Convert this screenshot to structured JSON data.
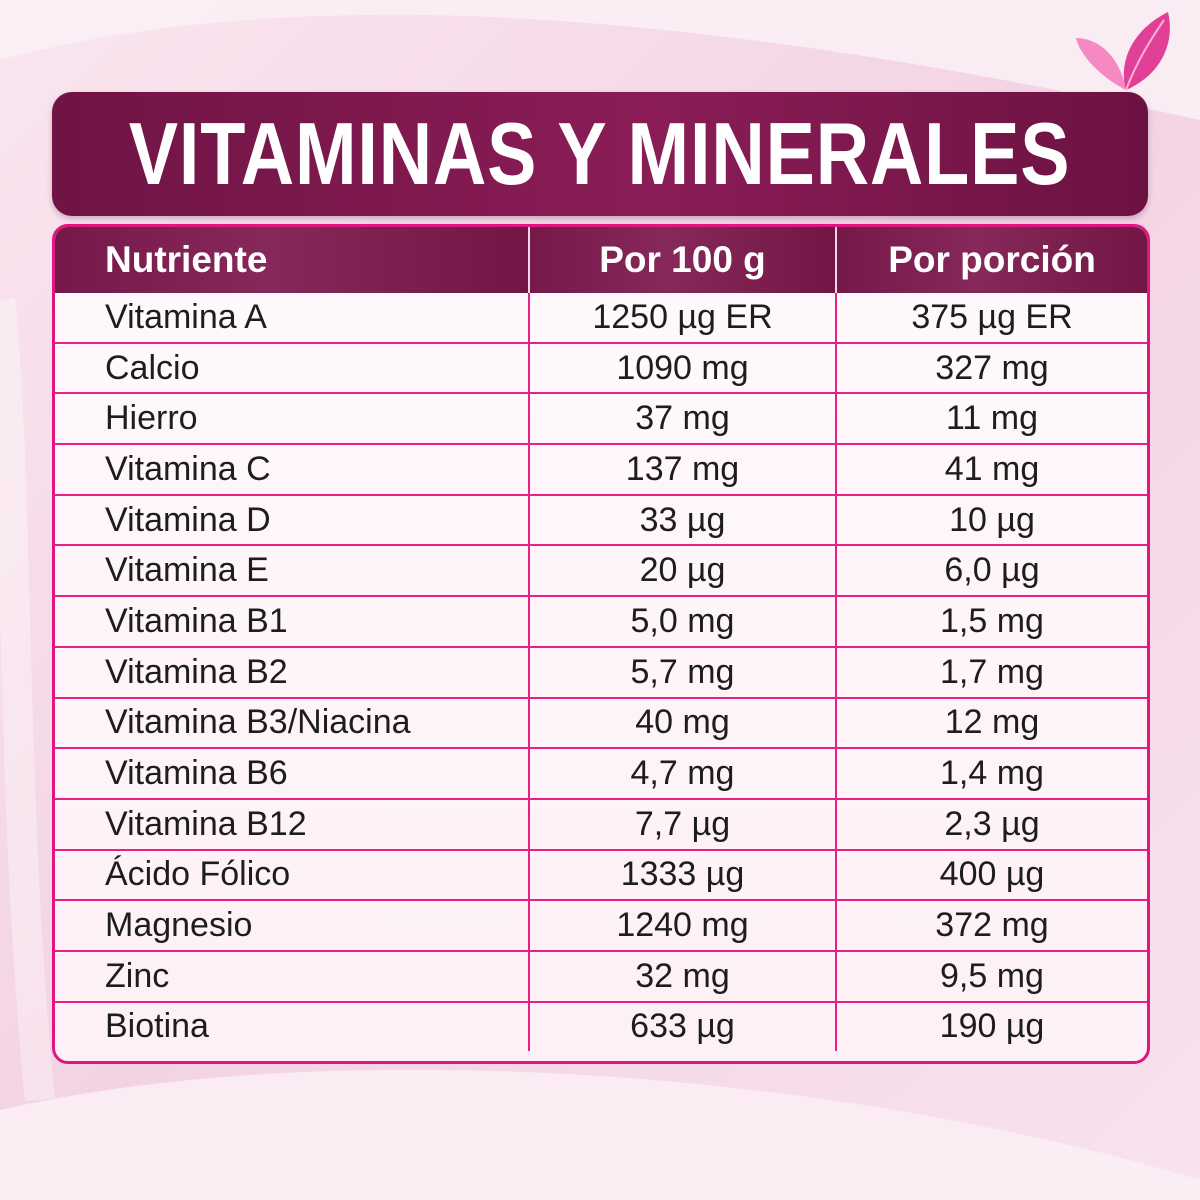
{
  "title": "VITAMINAS Y MINERALES",
  "decor": {
    "leaf_icon": "leaf-icon",
    "leaf_colors": [
      "#e23f97",
      "#f58ac3"
    ]
  },
  "colors": {
    "header_bg": "#7a1a4c",
    "border": "#e0157f",
    "background": "#f6dbe9"
  },
  "table": {
    "headers": [
      "Nutriente",
      "Por 100 g",
      "Por porción"
    ],
    "rows": [
      [
        "Vitamina A",
        "1250 µg ER",
        "375 µg ER"
      ],
      [
        "Calcio",
        "1090 mg",
        "327 mg"
      ],
      [
        "Hierro",
        "37 mg",
        "11 mg"
      ],
      [
        "Vitamina C",
        "137 mg",
        "41 mg"
      ],
      [
        "Vitamina D",
        "33 µg",
        "10 µg"
      ],
      [
        "Vitamina E",
        "20 µg",
        "6,0 µg"
      ],
      [
        "Vitamina B1",
        "5,0 mg",
        "1,5 mg"
      ],
      [
        "Vitamina B2",
        "5,7 mg",
        "1,7 mg"
      ],
      [
        "Vitamina B3/Niacina",
        "40 mg",
        "12 mg"
      ],
      [
        "Vitamina B6",
        "4,7 mg",
        "1,4 mg"
      ],
      [
        "Vitamina B12",
        "7,7 µg",
        "2,3 µg"
      ],
      [
        "Ácido Fólico",
        "1333 µg",
        "400 µg"
      ],
      [
        "Magnesio",
        "1240 mg",
        "372 mg"
      ],
      [
        "Zinc",
        "32 mg",
        "9,5 mg"
      ],
      [
        "Biotina",
        "633 µg",
        "190 µg"
      ]
    ]
  }
}
